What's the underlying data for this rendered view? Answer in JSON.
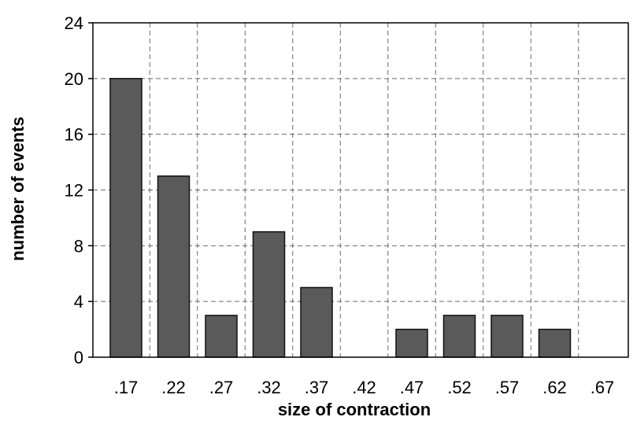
{
  "chart_data": {
    "type": "bar",
    "title": "",
    "xlabel": "size of contraction",
    "ylabel": "number of events",
    "categories": [
      ".17",
      ".22",
      ".27",
      ".32",
      ".37",
      ".42",
      ".47",
      ".52",
      ".57",
      ".62",
      ".67"
    ],
    "values": [
      20,
      13,
      3,
      9,
      5,
      0,
      2,
      3,
      3,
      2,
      0
    ],
    "ylim": [
      0,
      24
    ],
    "yticks": [
      "0",
      "4",
      "8",
      "12",
      "16",
      "20",
      "24"
    ],
    "grid": true,
    "legend": "none",
    "colors": {
      "bar_fill": "#5a5a5a",
      "bar_stroke": "#111111",
      "grid": "#6a6a6a",
      "axis": "#000000"
    }
  }
}
